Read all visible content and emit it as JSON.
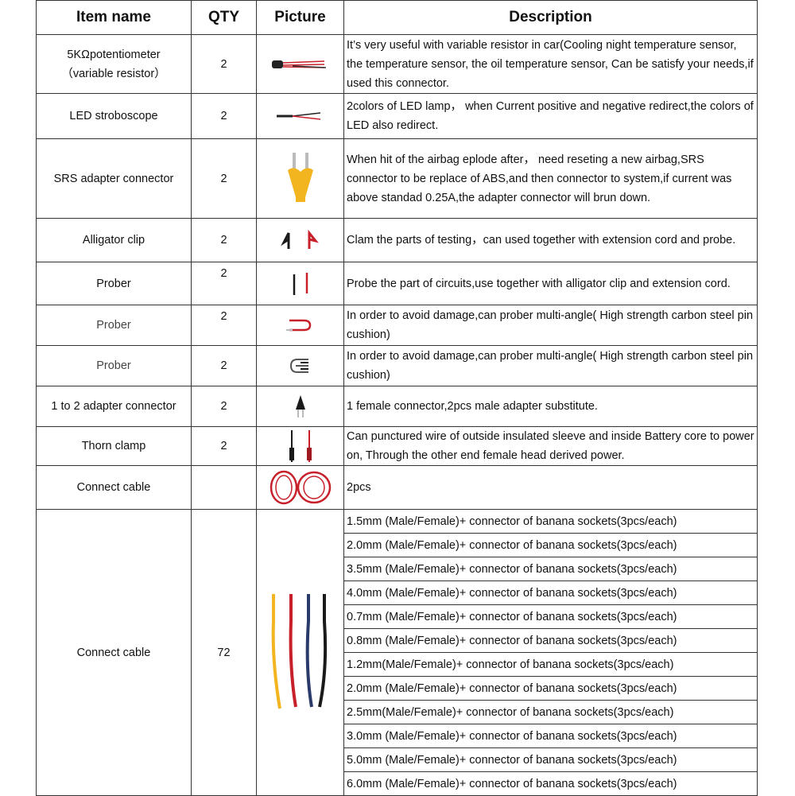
{
  "headers": [
    "Item name",
    "QTY",
    "Picture",
    "Description"
  ],
  "rows": [
    {
      "name": "5KΩpotentiometer",
      "name2": "（variable resistor）",
      "qty": "2",
      "picture": "potentiometer-image",
      "desc": "It’s very useful with variable resistor in car(Cooling night temperature sensor, the temperature sensor, the oil temperature sensor, Can be satisfy your needs,if used this connector."
    },
    {
      "name": "LED stroboscope",
      "qty": "2",
      "picture": "led-stroboscope-image",
      "desc": "2colors of LED lamp， when Current positive and negative redirect,the colors of LED also redirect."
    },
    {
      "name": "SRS adapter connector",
      "qty": "2",
      "picture": "srs-adapter-image",
      "desc": "When hit of the airbag eplode after， need reseting a new airbag,SRS connector to be replace of ABS,and then connector to system,if current was above standad 0.25A,the adapter connector will brun down."
    },
    {
      "name": "Alligator clip",
      "qty": "2",
      "picture": "alligator-clip-image",
      "desc": "Clam the parts of testing，can used together with extension cord and probe."
    },
    {
      "name": "Prober",
      "qty": "2",
      "picture": "prober-image",
      "desc": "Probe the part of circuits,use together with alligator clip and extension cord."
    },
    {
      "name": "Prober",
      "qty": "2",
      "picture": "bent-prober-image",
      "desc": "In order to avoid damage,can prober multi-angle( High strength carbon steel pin cushion)"
    },
    {
      "name": "Prober",
      "qty": "2",
      "picture": "multi-angle-prober-image",
      "desc": "In order to avoid damage,can prober multi-angle( High strength carbon steel pin cushion)"
    },
    {
      "name": "1 to 2 adapter connector",
      "qty": "2",
      "picture": "adapter-connector-image",
      "desc": "1 female connector,2pcs male adapter substitute."
    },
    {
      "name": "Thorn clamp",
      "qty": "2",
      "picture": "thorn-clamp-image",
      "desc": "Can punctured wire of outside insulated sleeve and inside Battery core to power on, Through the other end female head derived power."
    },
    {
      "name": "Connect cable",
      "qty": "",
      "picture": "coiled-cable-image",
      "desc": "2pcs"
    }
  ],
  "cable_group": {
    "name": "Connect cable",
    "qty": "72",
    "picture": "banana-cables-image",
    "items": [
      "1.5mm (Male/Female)+ connector of banana sockets(3pcs/each)",
      "2.0mm (Male/Female)+ connector of banana sockets(3pcs/each)",
      "3.5mm (Male/Female)+ connector of banana sockets(3pcs/each)",
      "4.0mm (Male/Female)+ connector of banana sockets(3pcs/each)",
      "0.7mm (Male/Female)+ connector of banana sockets(3pcs/each)",
      "0.8mm (Male/Female)+ connector of banana sockets(3pcs/each)",
      "1.2mm(Male/Female)+ connector of banana sockets(3pcs/each)",
      "2.0mm (Male/Female)+ connector of banana sockets(3pcs/each)",
      "2.5mm(Male/Female)+ connector of banana sockets(3pcs/each)",
      "3.0mm (Male/Female)+ connector of banana sockets(3pcs/each)",
      "5.0mm (Male/Female)+ connector of banana sockets(3pcs/each)",
      "6.0mm (Male/Female)+ connector of banana sockets(3pcs/each)"
    ]
  },
  "colors": {
    "red": "#c8202a",
    "black": "#1a1a1a",
    "yellow": "#f2b520",
    "blue": "#2a3a6a"
  }
}
